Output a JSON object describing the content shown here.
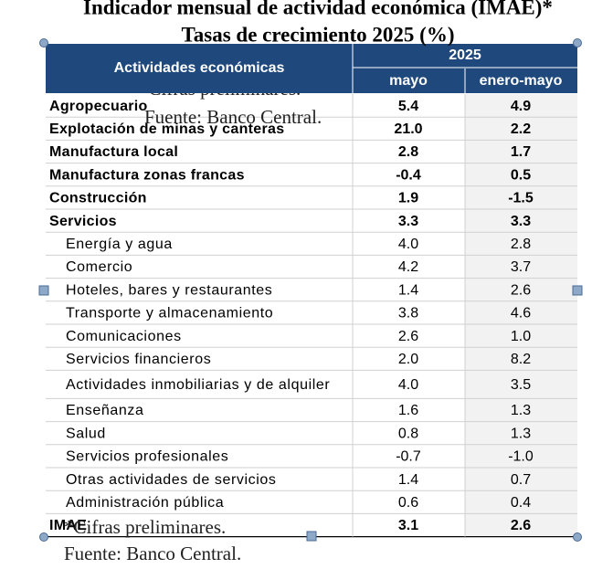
{
  "title": {
    "line1": "Indicador mensual de actividad económica (IMAE)*",
    "line2": "Tasas de crecimiento 2025 (%)"
  },
  "table": {
    "header": {
      "label": "Actividades económicas",
      "year": "2025",
      "col1": "mayo",
      "col2": "enero-mayo"
    },
    "rows": [
      [
        "Agropecuario",
        "5.4",
        "4.9"
      ],
      [
        "Explotación de minas y canteras",
        "21.0",
        "2.2"
      ],
      [
        "Manufactura local",
        "2.8",
        "1.7"
      ],
      [
        "Manufactura zonas francas",
        "-0.4",
        "0.5"
      ],
      [
        "Construcción",
        "1.9",
        "-1.5"
      ],
      [
        "Servicios",
        "3.3",
        "3.3"
      ],
      [
        "Energía y agua",
        "4.0",
        "2.8"
      ],
      [
        "Comercio",
        "4.2",
        "3.7"
      ],
      [
        "Hoteles, bares y restaurantes",
        "1.4",
        "2.6"
      ],
      [
        "Transporte y almacenamiento",
        "3.8",
        "4.6"
      ],
      [
        "Comunicaciones",
        "2.6",
        "1.0"
      ],
      [
        "Servicios financieros",
        "2.0",
        "8.2"
      ],
      [
        "Actividades inmobiliarias y de alquiler",
        "4.0",
        "3.5"
      ],
      [
        "Enseñanza",
        "1.6",
        "1.3"
      ],
      [
        "Salud",
        "0.8",
        "1.3"
      ],
      [
        "Servicios profesionales",
        "-0.7",
        "-1.0"
      ],
      [
        "Otras actividades de servicios",
        "1.4",
        "0.7"
      ],
      [
        "Administración pública",
        "0.6",
        "0.4"
      ],
      [
        "IMAE",
        "3.1",
        "2.6"
      ]
    ]
  },
  "notes": [
    "*Cifras preliminares.",
    "Fuente: Banco Central."
  ]
}
